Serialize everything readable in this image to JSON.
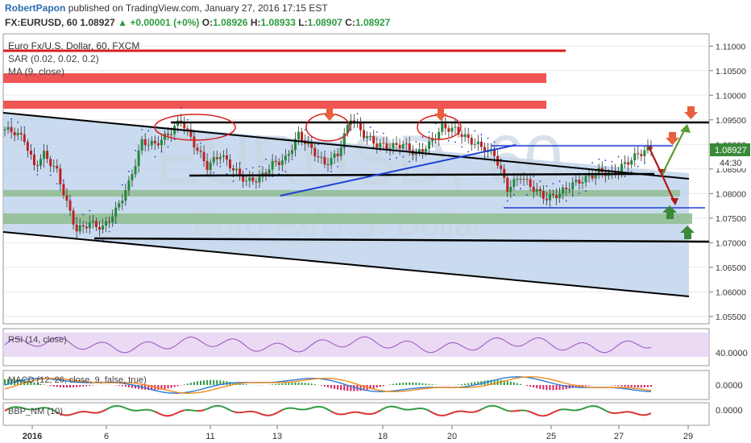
{
  "header": {
    "author": "RobertPapon",
    "published": "published on TradingView.com, January 27, 2016 17:15 EST",
    "symbol": "FX:EURUSD, 60",
    "last": "1.08927",
    "change_arrow": "▲",
    "change": "+0.00001 (+0%)",
    "o_label": "O:",
    "o_value": "1.08926",
    "h_label": "H:",
    "h_value": "1.08933",
    "l_label": "L:",
    "l_value": "1.08907",
    "c_label": "C:",
    "c_value": "1.08927"
  },
  "main_pane": {
    "title": "Euro Fx/U.S. Dollar, 60, FXCM",
    "indicator_1": "SAR (0.02, 0.02, 0.2)",
    "indicator_2": "MA (9, close)",
    "watermark_symbol": "EURUSD, 60",
    "watermark_name": "Euro Fx/U.S. Dollar",
    "last_price_tag": "1.08927",
    "countdown_tag": "44:30"
  },
  "panes": {
    "rsi_title": "RSI (14, close)",
    "rsi_tick": "40.0000",
    "macd_title": "MACD (12, 26, close, 9, false, true)",
    "macd_tick": "0.0000",
    "bbp_title": "BBP_NM (10)",
    "bbp_tick": "0.0000"
  },
  "colors": {
    "resistance_zone": "#f05555",
    "support_zone": "#8fbc8f",
    "channel_fill": "#b8cfea",
    "trend_black": "#000000",
    "trend_blue": "#1f3fd6",
    "arrow_orange": "#e8603c",
    "arrow_green": "#3a8a3a",
    "arrow_darkred": "#b01818",
    "arrow_olive": "#5a9a30",
    "rsi_line": "#9a50c0",
    "macd_line": "#2a7ad8",
    "signal_line": "#f08a1e"
  },
  "chart_data": {
    "type": "candlestick",
    "y_ticks": [
      "1.11000",
      "1.10500",
      "1.10000",
      "1.09500",
      "1.09000",
      "1.08500",
      "1.08000",
      "1.07500",
      "1.07000",
      "1.06500",
      "1.06000",
      "1.05500"
    ],
    "ylim": [
      1.0535,
      1.1125
    ],
    "x_ticks": [
      "2016",
      "6",
      "11",
      "13",
      "18",
      "20",
      "25",
      "27",
      "29"
    ],
    "approx_close_path": [
      [
        0,
        1.093
      ],
      [
        3,
        1.0925
      ],
      [
        6,
        1.091
      ],
      [
        9,
        1.0855
      ],
      [
        12,
        1.088
      ],
      [
        16,
        1.0845
      ],
      [
        19,
        1.078
      ],
      [
        22,
        1.0725
      ],
      [
        26,
        1.074
      ],
      [
        30,
        1.073
      ],
      [
        34,
        1.0765
      ],
      [
        38,
        1.082
      ],
      [
        42,
        1.0905
      ],
      [
        46,
        1.09
      ],
      [
        50,
        1.092
      ],
      [
        54,
        1.095
      ],
      [
        58,
        1.09
      ],
      [
        62,
        1.0855
      ],
      [
        66,
        1.088
      ],
      [
        70,
        1.085
      ],
      [
        74,
        1.0825
      ],
      [
        78,
        1.083
      ],
      [
        82,
        1.086
      ],
      [
        86,
        1.087
      ],
      [
        90,
        1.092
      ],
      [
        94,
        1.089
      ],
      [
        98,
        1.086
      ],
      [
        102,
        1.088
      ],
      [
        106,
        1.0955
      ],
      [
        110,
        1.092
      ],
      [
        114,
        1.09
      ],
      [
        118,
        1.0895
      ],
      [
        122,
        1.09
      ],
      [
        126,
        1.088
      ],
      [
        130,
        1.09
      ],
      [
        134,
        1.0935
      ],
      [
        138,
        1.093
      ],
      [
        142,
        1.091
      ],
      [
        146,
        1.0895
      ],
      [
        150,
        1.088
      ],
      [
        154,
        1.081
      ],
      [
        158,
        1.0835
      ],
      [
        162,
        1.081
      ],
      [
        166,
        1.079
      ],
      [
        170,
        1.08
      ],
      [
        174,
        1.082
      ],
      [
        178,
        1.083
      ],
      [
        182,
        1.0845
      ],
      [
        186,
        1.084
      ],
      [
        190,
        1.086
      ],
      [
        194,
        1.088
      ],
      [
        198,
        1.0893
      ]
    ],
    "levels": {
      "resistance_line": 1.1095,
      "resistance_zone_1": [
        1.1034,
        1.1048
      ],
      "resistance_zone_2": [
        1.0975,
        1.0987
      ],
      "neckline": 1.095,
      "support_zone_1": [
        1.0803,
        1.0812
      ],
      "support_zone_2": [
        1.075,
        1.0765
      ],
      "bottom_line": 1.0713,
      "mid_line": 1.084,
      "range_top": 1.0908,
      "range_bottom": 1.0779
    },
    "rsi": {
      "range": [
        10,
        90
      ],
      "last": 55
    },
    "macd": {
      "range": [
        -0.004,
        0.004
      ]
    },
    "bbp": {
      "range": [
        -0.01,
        0.01
      ]
    }
  }
}
